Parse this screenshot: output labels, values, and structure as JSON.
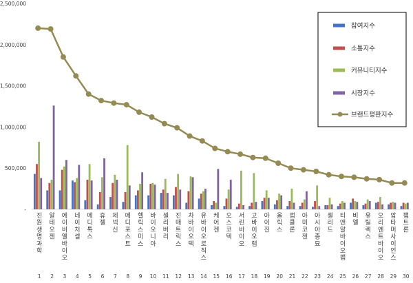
{
  "chart_data": {
    "type": "bar",
    "title": "",
    "xlabel": "",
    "ylabel": "",
    "ylim": [
      0,
      2500000
    ],
    "yticks": [
      0,
      500000,
      1000000,
      1500000,
      2000000,
      2500000
    ],
    "ytick_labels": [
      "-",
      "500,000",
      "1,000,000",
      "1,500,000",
      "2,000,000",
      "2,500,000"
    ],
    "grid": false,
    "legend_position": "top-right",
    "ranks": [
      "1",
      "2",
      "3",
      "4",
      "5",
      "6",
      "7",
      "8",
      "9",
      "10",
      "11",
      "12",
      "13",
      "14",
      "15",
      "16",
      "17",
      "18",
      "19",
      "20",
      "21",
      "22",
      "23",
      "24",
      "25",
      "26",
      "27",
      "28",
      "29",
      "30"
    ],
    "categories": [
      "진원생명과학",
      "알테오젠",
      "에이비엘바이오",
      "네이처셀",
      "메디톡스",
      "휴젤",
      "제넥신",
      "메디포스트",
      "헬릭스미스",
      "바이오니아",
      "셀리버리",
      "진매트릭스",
      "차바이오텍",
      "유바이오로직스",
      "케어젠",
      "오스코텍",
      "서린바이오",
      "고바이오랩",
      "아이진",
      "올릭스",
      "앱클론",
      "아미코젠",
      "아시아종묘",
      "셀리드",
      "티앤알바이오팹",
      "비엘",
      "유틸렉스",
      "오리엔트바이오",
      "압타머사이언스",
      "팹트론"
    ],
    "series": [
      {
        "name": "참여지수",
        "color": "#4472c4",
        "type": "bar",
        "values": [
          430000,
          230000,
          230000,
          350000,
          110000,
          60000,
          150000,
          90000,
          170000,
          170000,
          200000,
          170000,
          80000,
          130000,
          50000,
          40000,
          30000,
          40000,
          100000,
          60000,
          40000,
          40000,
          30000,
          50000,
          40000,
          80000,
          50000,
          80000,
          60000,
          40000
        ]
      },
      {
        "name": "소통지수",
        "color": "#c0504d",
        "type": "bar",
        "values": [
          550000,
          320000,
          480000,
          330000,
          360000,
          210000,
          320000,
          210000,
          230000,
          310000,
          240000,
          270000,
          220000,
          190000,
          100000,
          130000,
          70000,
          80000,
          140000,
          110000,
          100000,
          80000,
          100000,
          50000,
          70000,
          130000,
          70000,
          90000,
          80000,
          80000
        ]
      },
      {
        "name": "커뮤니티지수",
        "color": "#9bbb59",
        "type": "bar",
        "values": [
          820000,
          360000,
          520000,
          380000,
          550000,
          390000,
          420000,
          780000,
          310000,
          320000,
          370000,
          430000,
          400000,
          220000,
          80000,
          240000,
          470000,
          440000,
          230000,
          190000,
          250000,
          120000,
          290000,
          140000,
          100000,
          100000,
          120000,
          150000,
          90000,
          70000
        ]
      },
      {
        "name": "시장지수",
        "color": "#8064a2",
        "type": "bar",
        "values": [
          380000,
          1260000,
          600000,
          540000,
          350000,
          620000,
          360000,
          290000,
          450000,
          300000,
          200000,
          240000,
          390000,
          250000,
          490000,
          360000,
          50000,
          90000,
          140000,
          170000,
          80000,
          220000,
          40000,
          60000,
          80000,
          90000,
          100000,
          60000,
          80000,
          80000
        ]
      },
      {
        "name": "브랜드평판지수",
        "color": "#948a54",
        "type": "line",
        "values": [
          2200000,
          2190000,
          1850000,
          1620000,
          1400000,
          1320000,
          1290000,
          1270000,
          1180000,
          1120000,
          1040000,
          990000,
          890000,
          830000,
          740000,
          700000,
          670000,
          630000,
          620000,
          560000,
          500000,
          480000,
          460000,
          420000,
          400000,
          390000,
          370000,
          360000,
          320000,
          320000
        ]
      }
    ]
  }
}
